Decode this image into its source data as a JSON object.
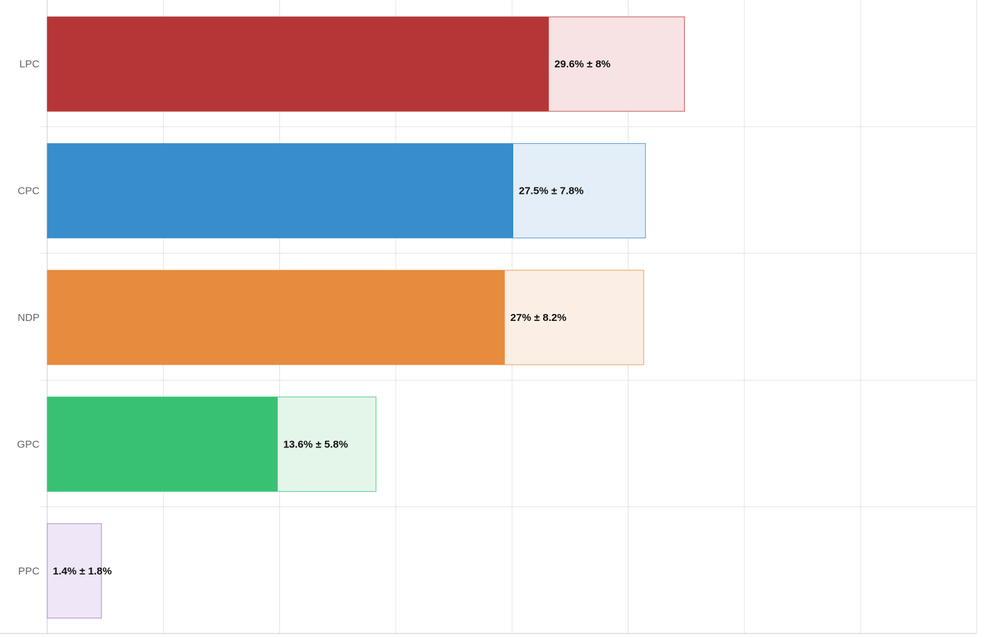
{
  "chart_data": {
    "type": "bar",
    "orientation": "horizontal",
    "categories": [
      "LPC",
      "CPC",
      "NDP",
      "GPC",
      "PPC"
    ],
    "series": [
      {
        "values": [
          29.6,
          27.5,
          27.0,
          13.6,
          1.4
        ]
      }
    ],
    "errors": [
      8,
      7.8,
      8.2,
      5.8,
      1.8
    ],
    "data_labels": [
      "29.6% ± 8%",
      "27.5% ± 7.8%",
      "27% ± 8.2%",
      "13.6% ± 5.8%",
      "1.4% ± 1.8%"
    ],
    "colors": [
      "#b53233",
      "#348bcb",
      "#e7893b",
      "#34c070",
      "#9b70c8"
    ],
    "range_fill_colors": [
      "#f7e3e3",
      "#e3eef8",
      "#fbefe5",
      "#e4f6ea",
      "#efe6f7"
    ],
    "xlim": [
      0,
      40
    ],
    "grid": true,
    "legend": "none"
  }
}
